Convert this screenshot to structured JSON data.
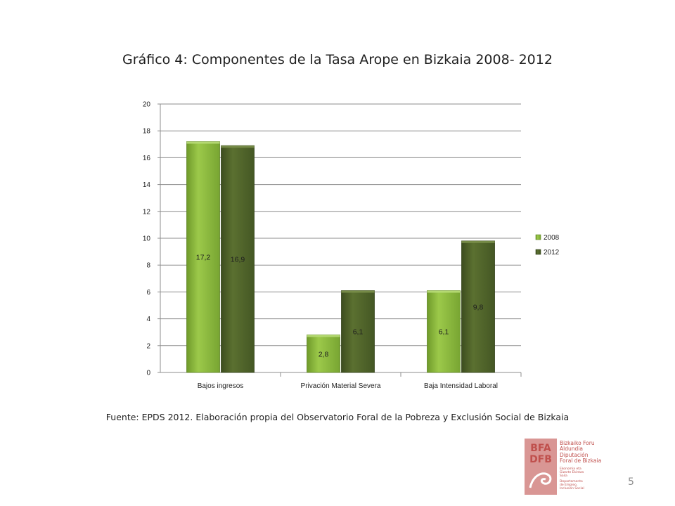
{
  "slide": {
    "title": "Gráfico 4: Componentes de la Tasa Arope en Bizkaia 2008- 2012",
    "source": "Fuente: EPDS 2012. Elaboración propia del Observatorio Foral de la Pobreza y Exclusión Social de Bizkaia",
    "page_number": "5"
  },
  "logo": {
    "mark_lines": [
      "BFA",
      "DFB"
    ],
    "org_lines": [
      "Bizkaiko Foru",
      "Aldundia",
      "Diputación",
      "Foral de Bizkaia"
    ],
    "dept_lines": [
      "Ekonomia eta",
      "Gizarte Ekintza",
      "Saila",
      "Departamento",
      "de Empleo,",
      "Inclusión Social"
    ]
  },
  "chart_data": {
    "type": "bar",
    "categories": [
      "Bajos ingresos",
      "Privación Material Severa",
      "Baja Intensidad Laboral"
    ],
    "series": [
      {
        "name": "2008",
        "values": [
          17.2,
          2.8,
          6.1
        ],
        "labels": [
          "17,2",
          "2,8",
          "6,1"
        ],
        "color": "#8cb83c"
      },
      {
        "name": "2012",
        "values": [
          16.9,
          6.1,
          9.8
        ],
        "labels": [
          "16,9",
          "6,1",
          "9,8"
        ],
        "color": "#4f6228"
      }
    ],
    "ylim": [
      0,
      20
    ],
    "yticks": [
      "0",
      "2",
      "4",
      "6",
      "8",
      "10",
      "12",
      "14",
      "16",
      "18",
      "20"
    ],
    "grid": true,
    "legend_position": "right"
  }
}
